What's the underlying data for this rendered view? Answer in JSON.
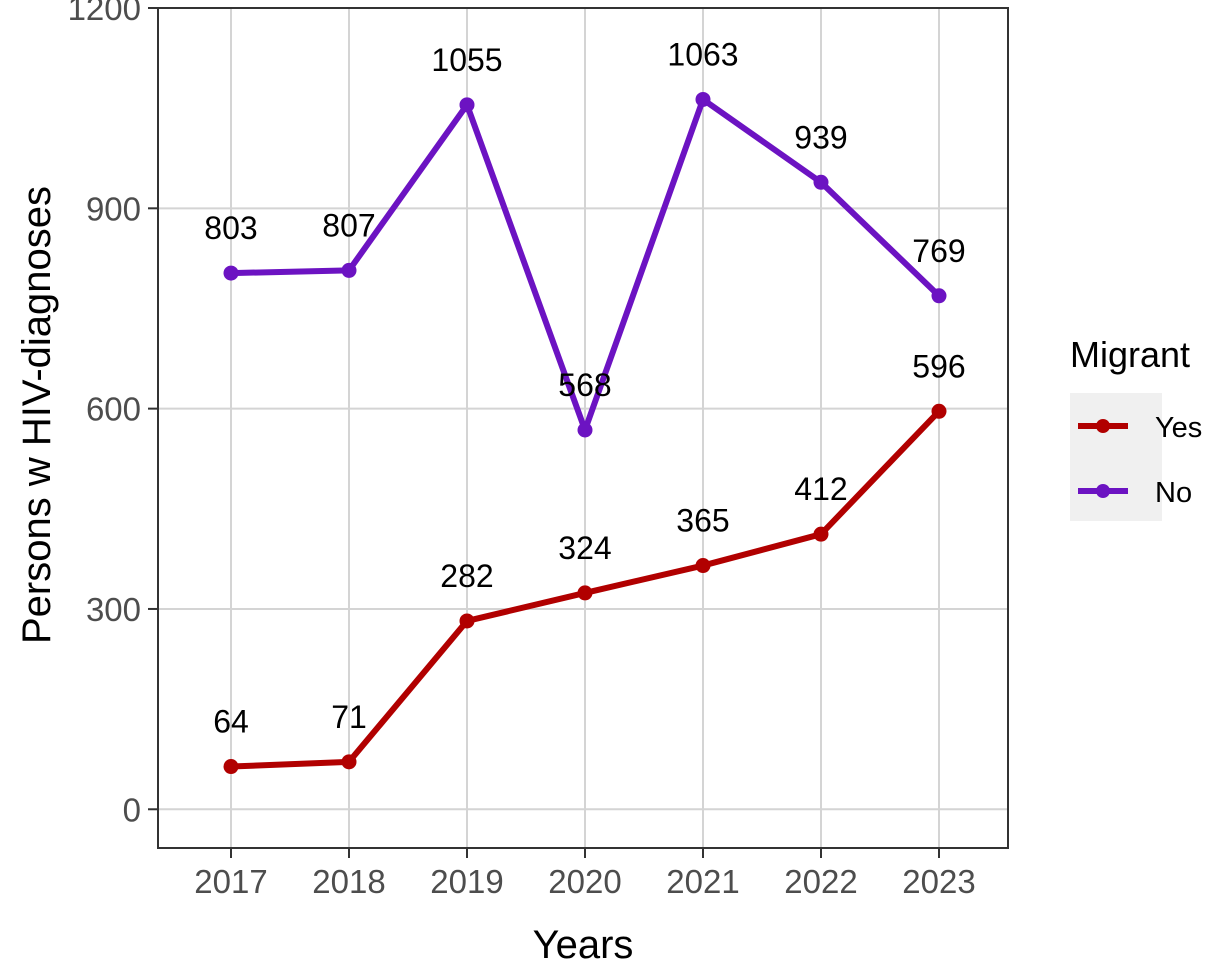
{
  "chart_data": {
    "type": "line",
    "title": "",
    "xlabel": "Years",
    "ylabel": "Persons w HIV-diagnoses",
    "x": [
      2017,
      2018,
      2019,
      2020,
      2021,
      2022,
      2023
    ],
    "xticks": [
      "2017",
      "2018",
      "2019",
      "2020",
      "2021",
      "2022",
      "2023"
    ],
    "yticks": [
      0,
      300,
      600,
      900,
      1200
    ],
    "ylim": [
      -58,
      1200
    ],
    "grid": true,
    "legend": {
      "title": "Migrant",
      "position": "right"
    },
    "series": [
      {
        "name": "Yes",
        "color": "#b10000",
        "values": [
          64,
          71,
          282,
          324,
          365,
          412,
          596
        ],
        "labels": [
          "64",
          "71",
          "282",
          "324",
          "365",
          "412",
          "596"
        ]
      },
      {
        "name": "No",
        "color": "#6c13c2",
        "values": [
          803,
          807,
          1055,
          568,
          1063,
          939,
          769
        ],
        "labels": [
          "803",
          "807",
          "1055",
          "568",
          "1063",
          "939",
          "769"
        ]
      }
    ]
  }
}
